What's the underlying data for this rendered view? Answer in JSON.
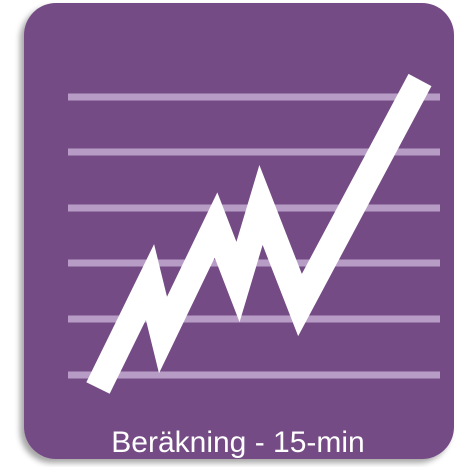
{
  "caption": "Beräkning - 15-min"
}
